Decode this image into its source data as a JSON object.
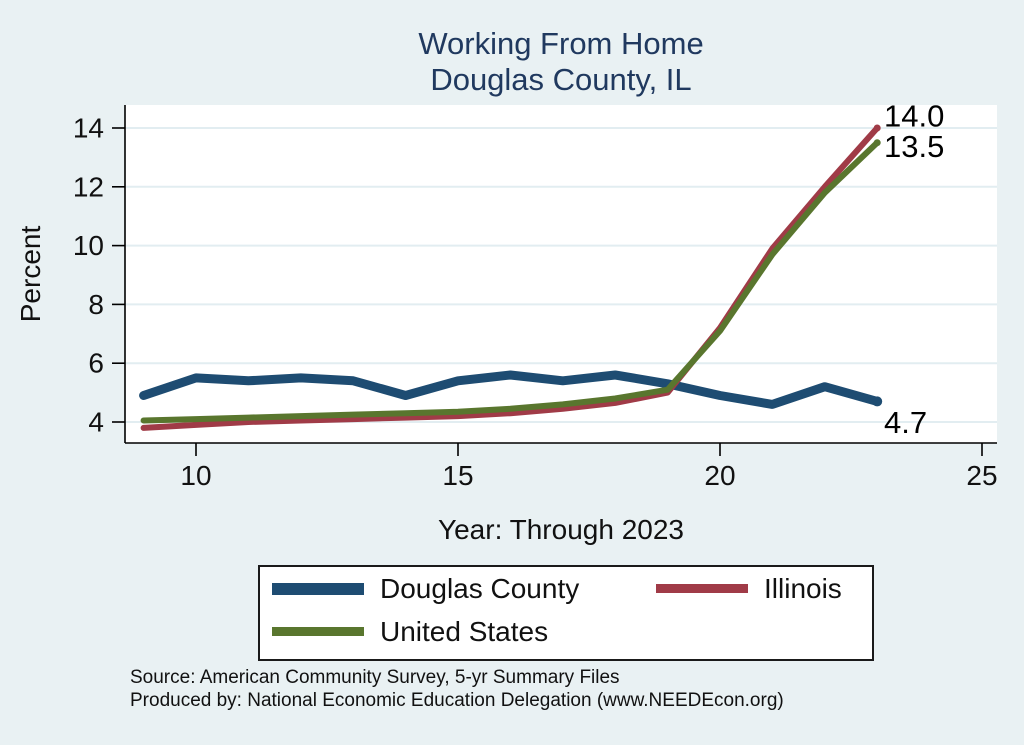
{
  "title": {
    "line1": "Working From Home",
    "line2": "Douglas County, IL"
  },
  "chart_data": {
    "type": "line",
    "title": "Working From Home — Douglas County, IL",
    "xlabel": "Year: Through 2023",
    "ylabel": "Percent",
    "x": [
      9,
      10,
      11,
      12,
      13,
      14,
      15,
      16,
      17,
      18,
      19,
      20,
      21,
      22,
      23
    ],
    "x_ticks": [
      10,
      15,
      20,
      25
    ],
    "y_ticks": [
      4,
      6,
      8,
      10,
      12,
      14
    ],
    "xlim": [
      8.6,
      25.3
    ],
    "ylim": [
      3.3,
      14.8
    ],
    "grid": true,
    "legend_position": "bottom",
    "plot_bg": "#ffffff",
    "grid_color": "#e2edf1",
    "axis_color": "#000000",
    "series": [
      {
        "name": "Douglas County",
        "color": "#1e4c72",
        "line_width": 9,
        "values": [
          4.9,
          5.5,
          5.4,
          5.5,
          5.4,
          4.9,
          5.4,
          5.6,
          5.4,
          5.6,
          5.3,
          4.9,
          4.6,
          5.2,
          4.7
        ],
        "end_label": "4.7"
      },
      {
        "name": "Illinois",
        "color": "#a03b47",
        "line_width": 6,
        "values": [
          3.8,
          3.9,
          4.0,
          4.05,
          4.1,
          4.15,
          4.2,
          4.3,
          4.45,
          4.65,
          5.0,
          7.2,
          9.9,
          12.0,
          14.0
        ],
        "end_label": "14.0"
      },
      {
        "name": "United States",
        "color": "#59762e",
        "line_width": 6,
        "values": [
          4.05,
          4.1,
          4.15,
          4.2,
          4.25,
          4.3,
          4.35,
          4.45,
          4.6,
          4.8,
          5.1,
          7.1,
          9.7,
          11.8,
          13.5
        ],
        "end_label": "13.5"
      }
    ]
  },
  "legend": {
    "items": [
      {
        "label": "Douglas County",
        "color": "#1e4c72"
      },
      {
        "label": "Illinois",
        "color": "#a03b47"
      },
      {
        "label": "United States",
        "color": "#59762e"
      }
    ]
  },
  "footer": {
    "source": "Source: American Community Survey, 5-yr Summary Files",
    "produced_by": "Produced by: National Economic Education Delegation (www.NEEDEcon.org)"
  },
  "colors": {
    "background": "#e9f1f3",
    "title": "#20395f",
    "text": "#111111"
  }
}
